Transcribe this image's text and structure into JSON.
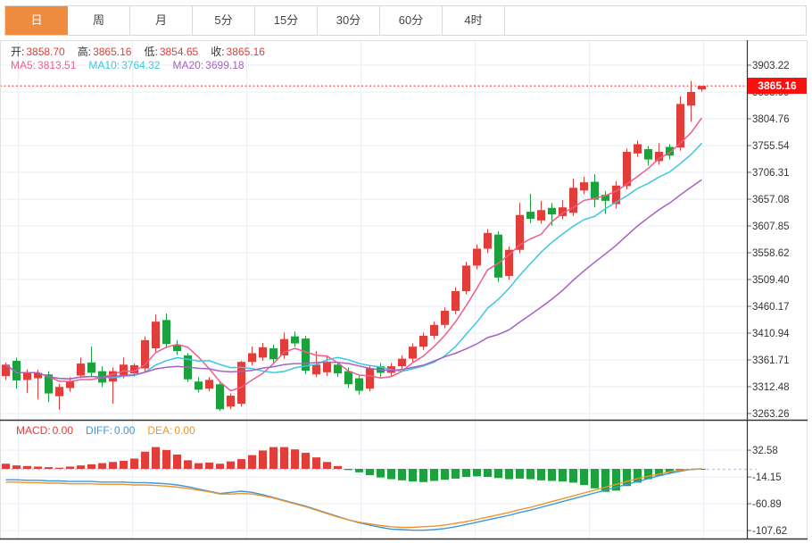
{
  "colors": {
    "up": "#e23d39",
    "down": "#1ca23c",
    "ma5": "#ee5d8b",
    "ma10": "#3ec6e0",
    "ma20": "#a95fc4",
    "diff": "#3b97e0",
    "dea": "#f0922d",
    "accent_tab": "#ef8b3f",
    "badge_bg": "#fb0f0f",
    "price_line": "#fb3b3b",
    "grid": "#e9eff5",
    "frame_dark": "#333333",
    "frame_light": "#e0e0e0",
    "axis_text": "#333333",
    "label_text": "#333333",
    "zero_dash": "#b9d6ec"
  },
  "tabs": [
    {
      "id": "day",
      "label": "日",
      "active": true
    },
    {
      "id": "week",
      "label": "周",
      "active": false
    },
    {
      "id": "month",
      "label": "月",
      "active": false
    },
    {
      "id": "5min",
      "label": "5分",
      "active": false
    },
    {
      "id": "15min",
      "label": "15分",
      "active": false
    },
    {
      "id": "30min",
      "label": "30分",
      "active": false
    },
    {
      "id": "60min",
      "label": "60分",
      "active": false
    },
    {
      "id": "4hour",
      "label": "4时",
      "active": false
    }
  ],
  "ohlc": {
    "items": [
      {
        "label": "开:",
        "value": "3858.70"
      },
      {
        "label": "高:",
        "value": "3865.16"
      },
      {
        "label": "低:",
        "value": "3854.65"
      },
      {
        "label": "收:",
        "value": "3865.16"
      }
    ]
  },
  "ma": {
    "items": [
      {
        "label": "MA5:",
        "value": "3813.51",
        "color": "#ee5d8b"
      },
      {
        "label": "MA10:",
        "value": "3764.32",
        "color": "#3ec6e0"
      },
      {
        "label": "MA20:",
        "value": "3699.18",
        "color": "#a95fc4"
      }
    ]
  },
  "macd_header": {
    "items": [
      {
        "label": "MACD:",
        "value": "0.00",
        "color": "#e23d39"
      },
      {
        "label": "DIFF:",
        "value": "0.00",
        "color": "#3b97e0"
      },
      {
        "label": "DEA:",
        "value": "0.00",
        "color": "#f0922d"
      }
    ]
  },
  "current_price": {
    "value": "3865.16"
  },
  "price_axis": {
    "ticks": [
      "3903.22",
      "3853.99",
      "3804.76",
      "3755.54",
      "3706.31",
      "3657.08",
      "3607.85",
      "3558.62",
      "3509.40",
      "3460.17",
      "3410.94",
      "3361.71",
      "3312.48",
      "3263.26"
    ]
  },
  "macd_axis": {
    "ticks": [
      "32.58",
      "-14.15",
      "-60.89",
      "-107.62"
    ]
  },
  "chart_data": {
    "type": "candlestick",
    "panels": [
      {
        "name": "price",
        "y_ticks": [
          3903.22,
          3853.99,
          3804.76,
          3755.54,
          3706.31,
          3657.08,
          3607.85,
          3558.62,
          3509.4,
          3460.17,
          3410.94,
          3361.71,
          3312.48,
          3263.26
        ],
        "current_price": 3865.16,
        "open": 3858.7,
        "high": 3865.16,
        "low": 3854.65,
        "close": 3865.16,
        "ma5_last": 3813.51,
        "ma10_last": 3764.32,
        "ma20_last": 3699.18,
        "ma_periods": [
          5,
          10,
          20
        ],
        "candles": [
          [
            3332,
            3357,
            3325,
            3353
          ],
          [
            3360,
            3366,
            3309,
            3324
          ],
          [
            3325,
            3344,
            3301,
            3338
          ],
          [
            3328,
            3344,
            3289,
            3338
          ],
          [
            3335,
            3341,
            3284,
            3300
          ],
          [
            3295,
            3318,
            3270,
            3312
          ],
          [
            3310,
            3330,
            3303,
            3323
          ],
          [
            3333,
            3366,
            3328,
            3355
          ],
          [
            3357,
            3386,
            3332,
            3338
          ],
          [
            3341,
            3350,
            3312,
            3320
          ],
          [
            3322,
            3348,
            3281,
            3341
          ],
          [
            3334,
            3366,
            3328,
            3353
          ],
          [
            3337,
            3355,
            3331,
            3352
          ],
          [
            3346,
            3405,
            3340,
            3398
          ],
          [
            3383,
            3445,
            3376,
            3432
          ],
          [
            3435,
            3447,
            3383,
            3391
          ],
          [
            3389,
            3398,
            3371,
            3378
          ],
          [
            3370,
            3374,
            3321,
            3326
          ],
          [
            3322,
            3330,
            3302,
            3307
          ],
          [
            3309,
            3330,
            3304,
            3325
          ],
          [
            3317,
            3320,
            3268,
            3271
          ],
          [
            3276,
            3300,
            3271,
            3296
          ],
          [
            3281,
            3360,
            3276,
            3358
          ],
          [
            3358,
            3386,
            3352,
            3374
          ],
          [
            3366,
            3393,
            3360,
            3385
          ],
          [
            3383,
            3390,
            3356,
            3363
          ],
          [
            3370,
            3412,
            3364,
            3400
          ],
          [
            3405,
            3414,
            3386,
            3392
          ],
          [
            3401,
            3406,
            3336,
            3342
          ],
          [
            3335,
            3378,
            3330,
            3353
          ],
          [
            3339,
            3370,
            3332,
            3357
          ],
          [
            3353,
            3358,
            3330,
            3337
          ],
          [
            3341,
            3348,
            3310,
            3317
          ],
          [
            3328,
            3334,
            3298,
            3305
          ],
          [
            3309,
            3352,
            3304,
            3346
          ],
          [
            3350,
            3356,
            3330,
            3338
          ],
          [
            3338,
            3356,
            3330,
            3350
          ],
          [
            3350,
            3370,
            3344,
            3364
          ],
          [
            3364,
            3392,
            3358,
            3386
          ],
          [
            3386,
            3412,
            3380,
            3406
          ],
          [
            3406,
            3432,
            3400,
            3426
          ],
          [
            3426,
            3458,
            3420,
            3452
          ],
          [
            3452,
            3495,
            3446,
            3488
          ],
          [
            3488,
            3542,
            3482,
            3535
          ],
          [
            3535,
            3574,
            3528,
            3566
          ],
          [
            3566,
            3602,
            3558,
            3595
          ],
          [
            3592,
            3598,
            3505,
            3513
          ],
          [
            3516,
            3570,
            3509,
            3564
          ],
          [
            3564,
            3650,
            3558,
            3628
          ],
          [
            3634,
            3667,
            3613,
            3621
          ],
          [
            3618,
            3654,
            3612,
            3637
          ],
          [
            3641,
            3650,
            3608,
            3629
          ],
          [
            3626,
            3655,
            3620,
            3642
          ],
          [
            3632,
            3695,
            3626,
            3678
          ],
          [
            3673,
            3698,
            3666,
            3688
          ],
          [
            3689,
            3703,
            3642,
            3656
          ],
          [
            3665,
            3672,
            3630,
            3654
          ],
          [
            3648,
            3690,
            3640,
            3682
          ],
          [
            3681,
            3750,
            3675,
            3744
          ],
          [
            3741,
            3765,
            3735,
            3758
          ],
          [
            3749,
            3755,
            3719,
            3730
          ],
          [
            3727,
            3760,
            3720,
            3744
          ],
          [
            3753,
            3758,
            3730,
            3737
          ],
          [
            3752,
            3846,
            3746,
            3832
          ],
          [
            3829,
            3874,
            3799,
            3854
          ],
          [
            3858.7,
            3865.16,
            3854.65,
            3865.16
          ]
        ]
      },
      {
        "name": "macd",
        "y_ticks": [
          32.58,
          -14.15,
          -60.89,
          -107.62
        ],
        "macd_last": 0.0,
        "diff_last": 0.0,
        "dea_last": 0.0,
        "hist": [
          9,
          6,
          5,
          4,
          3,
          2,
          4,
          6,
          8,
          10,
          12,
          14,
          18,
          30,
          38,
          33,
          25,
          15,
          10,
          11,
          9,
          13,
          17,
          24,
          32,
          38,
          38,
          34,
          28,
          20,
          12,
          5,
          -2,
          -6,
          -11,
          -15,
          -18,
          -20,
          -22,
          -23,
          -21,
          -19,
          -17,
          -14,
          -13,
          -14,
          -16,
          -18,
          -17,
          -18,
          -20,
          -21,
          -22,
          -24,
          -28,
          -34,
          -40,
          -38,
          -30,
          -24,
          -18,
          -12,
          -7,
          -4,
          -2,
          -1
        ],
        "diff": [
          -19,
          -19,
          -20,
          -20,
          -21,
          -21,
          -22,
          -22,
          -22,
          -23,
          -23,
          -23,
          -24,
          -24,
          -25,
          -26,
          -28,
          -31,
          -35,
          -39,
          -43,
          -41,
          -39,
          -41,
          -45,
          -50,
          -55,
          -60,
          -65,
          -71,
          -77,
          -83,
          -89,
          -94,
          -98,
          -102,
          -105,
          -106,
          -107,
          -107,
          -106,
          -104,
          -101,
          -97,
          -93,
          -89,
          -85,
          -81,
          -76,
          -72,
          -67,
          -62,
          -57,
          -52,
          -47,
          -42,
          -37,
          -32,
          -27,
          -22,
          -17,
          -12,
          -8,
          -4,
          -1,
          0
        ],
        "dea": [
          -23,
          -23,
          -24,
          -24,
          -25,
          -25,
          -26,
          -26,
          -26,
          -27,
          -27,
          -27,
          -28,
          -28,
          -29,
          -30,
          -32,
          -34,
          -37,
          -40,
          -44,
          -44,
          -43,
          -44,
          -47,
          -51,
          -56,
          -61,
          -66,
          -72,
          -78,
          -84,
          -89,
          -93,
          -96,
          -99,
          -101,
          -102,
          -102,
          -101,
          -100,
          -98,
          -95,
          -92,
          -88,
          -84,
          -80,
          -76,
          -71,
          -67,
          -62,
          -57,
          -52,
          -47,
          -42,
          -37,
          -32,
          -27,
          -22,
          -17,
          -13,
          -9,
          -5,
          -2,
          -1,
          0
        ]
      }
    ]
  }
}
